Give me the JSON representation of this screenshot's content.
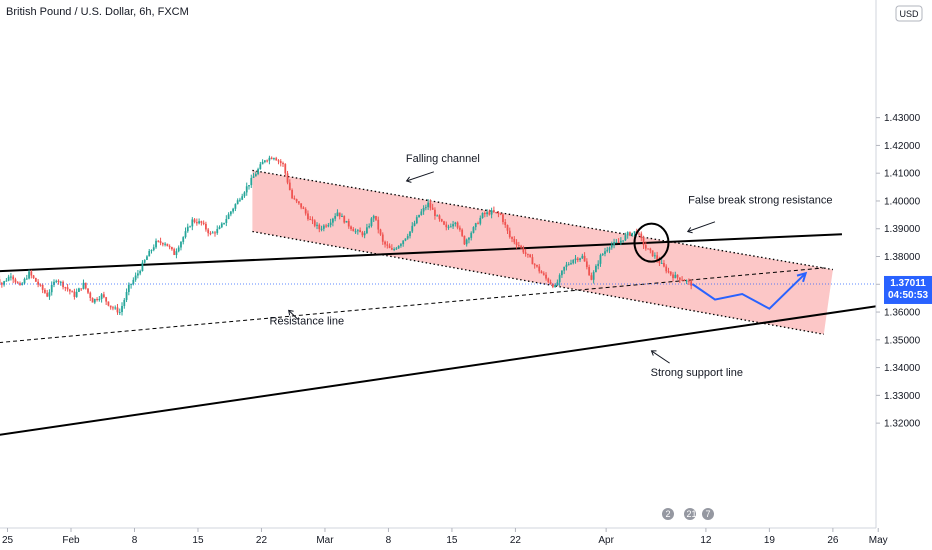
{
  "chart_data": {
    "type": "candlestick",
    "title": "British Pound / U.S. Dollar, 6h, FXCM",
    "currency_button": "USD",
    "y_ticks": [
      "1.43000",
      "1.42000",
      "1.41000",
      "1.40000",
      "1.39000",
      "1.38000",
      "1.37000",
      "1.36000",
      "1.35000",
      "1.34000",
      "1.33000",
      "1.32000"
    ],
    "x_ticks": [
      {
        "label": "25",
        "day": -7
      },
      {
        "label": "Feb",
        "day": 0
      },
      {
        "label": "8",
        "day": 7
      },
      {
        "label": "15",
        "day": 14
      },
      {
        "label": "22",
        "day": 21
      },
      {
        "label": "Mar",
        "day": 28
      },
      {
        "label": "8",
        "day": 35
      },
      {
        "label": "15",
        "day": 42
      },
      {
        "label": "22",
        "day": 49
      },
      {
        "label": "Apr",
        "day": 59
      },
      {
        "label": "12",
        "day": 70
      },
      {
        "label": "19",
        "day": 77
      },
      {
        "label": "26",
        "day": 84
      },
      {
        "label": "May",
        "day": 89
      }
    ],
    "current_price": {
      "price": "1.37011",
      "countdown": "04:50:53",
      "value": 1.37011
    },
    "colors": {
      "up": "#26a69a",
      "down": "#ef5350",
      "channel_fill": "#fbb4b4",
      "channel_stroke": "#f07e7e",
      "projection": "#2962ff",
      "price_tag": "#2962ff",
      "line": "#000000"
    },
    "price_path": [
      [
        -8.5,
        1.3745
      ],
      [
        -7.5,
        1.37
      ],
      [
        -6.5,
        1.3735
      ],
      [
        -5.5,
        1.369
      ],
      [
        -4.5,
        1.374
      ],
      [
        -3.5,
        1.37
      ],
      [
        -2.5,
        1.366
      ],
      [
        -1.5,
        1.372
      ],
      [
        -0.5,
        1.369
      ],
      [
        0.5,
        1.366
      ],
      [
        1.5,
        1.37
      ],
      [
        2.5,
        1.364
      ],
      [
        3.5,
        1.366
      ],
      [
        4.5,
        1.362
      ],
      [
        5.5,
        1.36
      ],
      [
        6.5,
        1.369
      ],
      [
        7.5,
        1.374
      ],
      [
        8.5,
        1.38
      ],
      [
        9.5,
        1.385
      ],
      [
        10.5,
        1.385
      ],
      [
        11.5,
        1.381
      ],
      [
        12.5,
        1.387
      ],
      [
        13.5,
        1.393
      ],
      [
        14.5,
        1.392
      ],
      [
        15.5,
        1.388
      ],
      [
        16.5,
        1.39
      ],
      [
        17.5,
        1.395
      ],
      [
        18.5,
        1.4
      ],
      [
        19.5,
        1.405
      ],
      [
        20.5,
        1.41
      ],
      [
        21.5,
        1.415
      ],
      [
        22.5,
        1.416
      ],
      [
        23.5,
        1.413
      ],
      [
        24.5,
        1.401
      ],
      [
        25.5,
        1.398
      ],
      [
        26.5,
        1.393
      ],
      [
        27.5,
        1.39
      ],
      [
        28.5,
        1.392
      ],
      [
        29.5,
        1.396
      ],
      [
        30.5,
        1.392
      ],
      [
        31.5,
        1.389
      ],
      [
        32.5,
        1.388
      ],
      [
        33.5,
        1.395
      ],
      [
        34.5,
        1.385
      ],
      [
        35.5,
        1.382
      ],
      [
        36.5,
        1.385
      ],
      [
        37.5,
        1.389
      ],
      [
        38.5,
        1.395
      ],
      [
        39.5,
        1.399
      ],
      [
        40.5,
        1.394
      ],
      [
        41.5,
        1.39
      ],
      [
        42.5,
        1.393
      ],
      [
        43.5,
        1.385
      ],
      [
        44.5,
        1.39
      ],
      [
        45.5,
        1.395
      ],
      [
        46.5,
        1.396
      ],
      [
        47.5,
        1.395
      ],
      [
        48.5,
        1.387
      ],
      [
        49.5,
        1.384
      ],
      [
        50.5,
        1.38
      ],
      [
        51.5,
        1.376
      ],
      [
        52.5,
        1.372
      ],
      [
        53.5,
        1.369
      ],
      [
        54.5,
        1.376
      ],
      [
        55.5,
        1.379
      ],
      [
        56.5,
        1.38
      ],
      [
        57.5,
        1.372
      ],
      [
        58.5,
        1.38
      ],
      [
        59.5,
        1.384
      ],
      [
        60.5,
        1.385
      ],
      [
        61.5,
        1.388
      ],
      [
        62.5,
        1.389
      ],
      [
        63.5,
        1.383
      ],
      [
        64.5,
        1.38
      ],
      [
        65.5,
        1.376
      ],
      [
        66.5,
        1.373
      ],
      [
        67.5,
        1.372
      ],
      [
        68.5,
        1.3701
      ]
    ],
    "lines": {
      "support_strong": {
        "p1": [
          -11,
          1.3143
        ],
        "p2": [
          97,
          1.366
        ]
      },
      "resistance_solid": {
        "p1": [
          -11,
          1.3743
        ],
        "p2": [
          85,
          1.388
        ]
      },
      "resistance_dashed": {
        "p1": [
          -11,
          1.3481
        ],
        "p2": [
          83,
          1.3759
        ]
      },
      "channel": {
        "tl": [
          20,
          1.411
        ],
        "tr": [
          84,
          1.3753
        ],
        "br": [
          83,
          1.352
        ],
        "bl": [
          20,
          1.389
        ]
      }
    },
    "projection": [
      [
        68.5,
        1.3701
      ],
      [
        71,
        1.3645
      ],
      [
        74,
        1.3665
      ],
      [
        77,
        1.3612
      ],
      [
        81,
        1.374
      ]
    ],
    "circle": {
      "day": 64,
      "value": 1.385
    },
    "annotations": [
      {
        "label": "Falling channel",
        "day": 41,
        "value": 1.414,
        "arrow_from": [
          40,
          1.4105
        ],
        "arrow_to": [
          37,
          1.4072
        ]
      },
      {
        "label": "False break strong resistance",
        "day": 76,
        "value": 1.399,
        "arrow_from": [
          71,
          1.3925
        ],
        "arrow_to": [
          68,
          1.389
        ]
      },
      {
        "label": "Resistance line",
        "day": 26,
        "value": 1.3555,
        "arrow_from": [
          25,
          1.3574
        ],
        "arrow_to": [
          24,
          1.3606
        ]
      },
      {
        "label": "Strong support line",
        "day": 69,
        "value": 1.337,
        "arrow_from": [
          66,
          1.3416
        ],
        "arrow_to": [
          64,
          1.346
        ]
      }
    ],
    "badges": [
      "2",
      "217",
      "7"
    ]
  }
}
